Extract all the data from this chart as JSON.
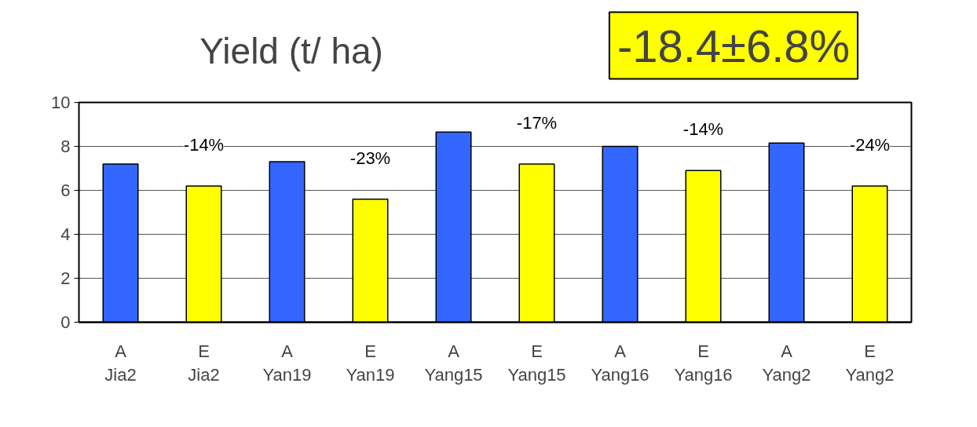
{
  "chart_data": {
    "type": "bar",
    "title": "Yield (t/ ha)",
    "categories": [
      "A\nJia2",
      "E\nJia2",
      "A\nYan19",
      "E\nYan19",
      "A\nYang15",
      "E\nYang15",
      "A\nYang16",
      "E\nYang16",
      "A\nYang2",
      "E\nYang2"
    ],
    "values": [
      7.2,
      6.2,
      7.3,
      5.6,
      8.65,
      7.2,
      8.0,
      6.9,
      8.15,
      6.2
    ],
    "colors": [
      "#3366ff",
      "#ffff00",
      "#3366ff",
      "#ffff00",
      "#3366ff",
      "#ffff00",
      "#3366ff",
      "#ffff00",
      "#3366ff",
      "#ffff00"
    ],
    "ylim": [
      0,
      10
    ],
    "yticks": [
      0,
      2,
      4,
      6,
      8,
      10
    ],
    "grid": "y",
    "annotations": [
      "-14%",
      "-23%",
      "-17%",
      "-14%",
      "-24%",
      "-18.4±6.8%"
    ]
  }
}
